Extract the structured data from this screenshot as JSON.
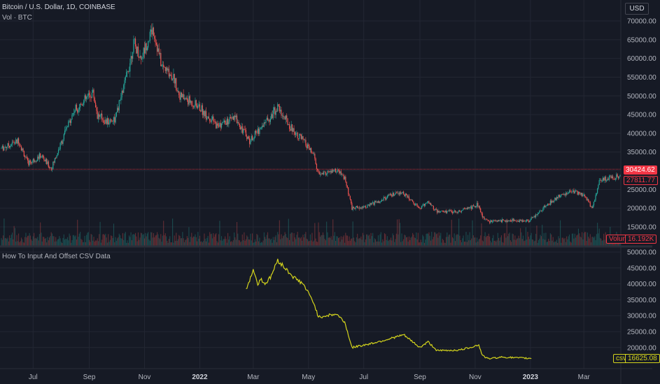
{
  "header": {
    "symbol_line": "Bitcoin / U.S. Dollar, 1D, COINBASE",
    "volume_line": "Vol · BTC",
    "currency_button": "USD"
  },
  "indicator": {
    "title": "How To Input And Offset CSV Data"
  },
  "tags": {
    "last_price": "30424.62",
    "second_price": "27811.77",
    "volume_label": "Volume",
    "volume_value": "16.192K",
    "csv_label": "csv",
    "csv_value": "16625.08"
  },
  "colors": {
    "background": "#161a25",
    "up": "#26a69a",
    "down": "#ef5350",
    "csv_line": "#d4d41c",
    "grid": "#232733",
    "tag_red": "#f23645"
  },
  "chart_data": [
    {
      "type": "candlestick",
      "title": "Bitcoin / U.S. Dollar, 1D, COINBASE",
      "y_ticks": [
        "70000.00",
        "65000.00",
        "60000.00",
        "55000.00",
        "50000.00",
        "45000.00",
        "40000.00",
        "35000.00",
        "25000.00",
        "20000.00",
        "15000.00"
      ],
      "x_ticks": [
        "Jul",
        "Sep",
        "Nov",
        "2022",
        "Mar",
        "May",
        "Jul",
        "Sep",
        "Nov",
        "2023",
        "Mar"
      ],
      "ylim": [
        12000,
        73000
      ],
      "close_path": {
        "x": [
          "2021-05-27",
          "2021-06-15",
          "2021-06-25",
          "2021-07-10",
          "2021-07-21",
          "2021-08-05",
          "2021-08-15",
          "2021-09-05",
          "2021-09-10",
          "2021-09-20",
          "2021-09-30",
          "2021-10-15",
          "2021-10-20",
          "2021-10-28",
          "2021-11-10",
          "2021-11-20",
          "2021-12-03",
          "2021-12-10",
          "2021-12-31",
          "2022-01-20",
          "2022-02-10",
          "2022-02-25",
          "2022-03-28",
          "2022-04-10",
          "2022-04-25",
          "2022-05-07",
          "2022-05-12",
          "2022-06-01",
          "2022-06-10",
          "2022-06-18",
          "2022-07-05",
          "2022-08-01",
          "2022-08-14",
          "2022-09-01",
          "2022-09-10",
          "2022-09-20",
          "2022-10-15",
          "2022-11-05",
          "2022-11-09",
          "2022-11-15",
          "2022-12-15",
          "2022-12-31",
          "2023-01-13",
          "2023-01-31",
          "2023-02-16",
          "2023-03-01",
          "2023-03-10",
          "2023-03-18",
          "2023-04-01",
          "2023-04-10"
        ],
        "y": [
          36000,
          38000,
          32000,
          34000,
          30500,
          40000,
          46000,
          51000,
          45000,
          43000,
          44000,
          58000,
          64000,
          60000,
          68000,
          58000,
          55000,
          50000,
          47000,
          42000,
          44000,
          38000,
          47000,
          42000,
          38000,
          34000,
          29000,
          30000,
          28000,
          20000,
          20500,
          23500,
          24000,
          20000,
          21800,
          19000,
          19200,
          21000,
          17500,
          16500,
          16800,
          16600,
          19500,
          23000,
          24500,
          23500,
          20000,
          27000,
          28500,
          28300
        ]
      },
      "last_price": 30424.62,
      "second_price": 27811.77,
      "volume": 16192
    },
    {
      "type": "line",
      "title": "How To Input And Offset CSV Data",
      "y_ticks": [
        "50000.00",
        "45000.00",
        "40000.00",
        "35000.00",
        "30000.00",
        "25000.00",
        "20000.00"
      ],
      "ylim": [
        14000,
        52500
      ],
      "series": [
        {
          "name": "csv",
          "x": [
            "2022-02-21",
            "2022-03-01",
            "2022-03-06",
            "2022-03-10",
            "2022-03-14",
            "2022-03-20",
            "2022-03-28",
            "2022-04-05",
            "2022-04-15",
            "2022-04-25",
            "2022-05-07",
            "2022-05-12",
            "2022-05-20",
            "2022-06-01",
            "2022-06-10",
            "2022-06-18",
            "2022-07-05",
            "2022-07-20",
            "2022-08-14",
            "2022-09-01",
            "2022-09-10",
            "2022-09-20",
            "2022-10-15",
            "2022-11-05",
            "2022-11-09",
            "2022-11-15",
            "2022-12-01",
            "2022-12-15",
            "2022-12-31",
            "2023-01-02"
          ],
          "y": [
            38000,
            44500,
            40000,
            41500,
            40000,
            42000,
            47500,
            45000,
            42000,
            40000,
            34000,
            29500,
            30000,
            30500,
            28000,
            20000,
            21000,
            22000,
            24000,
            20000,
            21800,
            19000,
            19200,
            20800,
            17500,
            16500,
            17000,
            16800,
            16600,
            16625.08
          ]
        }
      ],
      "last_value": 16625.08
    }
  ]
}
